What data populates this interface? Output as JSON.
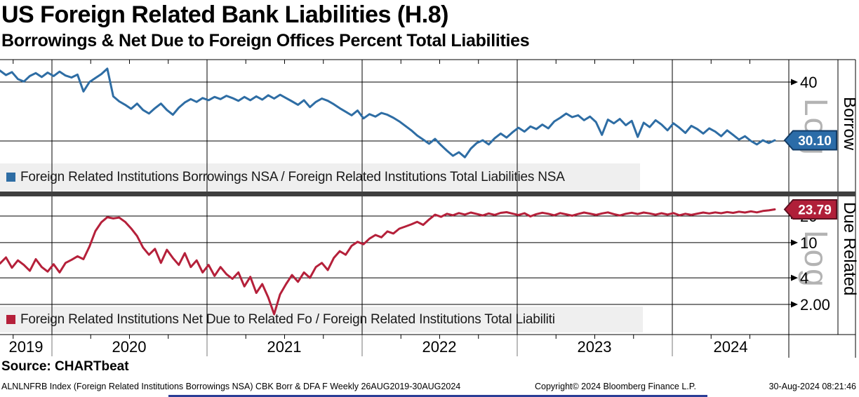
{
  "header": {
    "title": "US Foreign Related Bank Liabilities (H.8)",
    "subtitle": "Borrowings & Net Due to Foreign Offices Percent Total Liabilities"
  },
  "top_panel": {
    "legend": "Foreign Related Institutions Borrowings NSA / Foreign Related Institutions Total Liabilities NSA",
    "axis_title": "Borrow",
    "scale_label": "Log",
    "last_price": "30.10"
  },
  "bottom_panel": {
    "legend": "Foreign Related Institutions Net Due to Related Fo / Foreign Related Institutions Total Liabiliti",
    "axis_title": "Due Related",
    "scale_label": "Log",
    "last_price": "23.79"
  },
  "x_axis": {
    "years": [
      "2019",
      "2020",
      "2021",
      "2022",
      "2023",
      "2024"
    ]
  },
  "footer": {
    "source": "Source: CHARTbeat",
    "description": "ALNLNFRB Index (Foreign Related Institutions Borrowings NSA) CBK Borr & DFA F  Weekly 26AUG2019-30AUG2024",
    "copyright": "Copyright© 2024 Bloomberg Finance L.P.",
    "timestamp": "30-Aug-2024 08:21:46"
  },
  "colors": {
    "borrow_line": "#2E6DA4",
    "due_line": "#B5203A",
    "tag_blue_fill": "#2B6CA8",
    "tag_blue_border": "#123A63",
    "tag_red_fill": "#B01F39",
    "tag_red_border": "#5C1020",
    "legend_bg": "#EFEFEF",
    "watermark": "#B3B3B3",
    "divider": "#3F3F3F",
    "bottom_bar": "#2B3E96"
  },
  "chart_data": [
    {
      "type": "line",
      "name": "Foreign Related Institutions Borrowings NSA / Total Liabilities NSA",
      "scale": "log",
      "frequency": "Weekly",
      "x_range_label": "26AUG2019-30AUG2024",
      "x_start_year": 2019.65,
      "x_end_year": 2024.66,
      "y_ticks": [
        {
          "value": 40,
          "label": "40"
        }
      ],
      "gridline_values": [
        40,
        30
      ],
      "last_value": 30.1,
      "last_label": "30.10",
      "values": [
        42.3,
        41.4,
        42.0,
        40.6,
        40.1,
        41.2,
        41.8,
        41.0,
        41.9,
        41.2,
        42.1,
        41.3,
        40.9,
        41.5,
        38.2,
        40.0,
        40.8,
        41.6,
        42.7,
        37.3,
        36.4,
        35.8,
        35.1,
        36.0,
        34.9,
        34.3,
        35.2,
        36.0,
        34.9,
        34.1,
        35.3,
        36.2,
        36.8,
        36.3,
        37.0,
        36.6,
        37.2,
        36.8,
        37.4,
        37.0,
        36.5,
        37.2,
        36.6,
        37.3,
        36.7,
        37.5,
        36.9,
        37.6,
        37.0,
        36.4,
        35.8,
        36.6,
        35.4,
        36.3,
        36.9,
        36.5,
        35.9,
        35.2,
        34.6,
        34.0,
        34.8,
        33.5,
        34.2,
        33.8,
        34.4,
        34.1,
        33.6,
        33.0,
        32.3,
        31.6,
        30.8,
        30.2,
        29.6,
        30.3,
        29.4,
        28.6,
        27.9,
        28.4,
        27.7,
        28.9,
        29.7,
        30.1,
        29.5,
        30.4,
        31.1,
        30.5,
        31.3,
        32.0,
        31.4,
        32.2,
        31.8,
        32.5,
        31.9,
        33.0,
        33.6,
        34.3,
        33.7,
        34.0,
        33.2,
        33.8,
        32.9,
        30.9,
        33.3,
        32.7,
        33.4,
        32.4,
        33.1,
        30.6,
        32.8,
        32.1,
        33.2,
        32.5,
        31.6,
        32.7,
        32.0,
        31.2,
        32.3,
        31.8,
        31.1,
        31.9,
        31.4,
        30.7,
        31.6,
        30.9,
        30.2,
        30.7,
        30.0,
        29.5,
        30.1,
        29.7,
        30.1
      ]
    },
    {
      "type": "line",
      "name": "Foreign Related Institutions Net Due to Related Foreign Offices / Total Liabilities",
      "scale": "log",
      "frequency": "Weekly",
      "x_range_label": "26AUG2019-30AUG2024",
      "x_start_year": 2019.65,
      "x_end_year": 2024.66,
      "y_ticks": [
        {
          "value": 20,
          "label": "20"
        },
        {
          "value": 10,
          "label": "10"
        },
        {
          "value": 4,
          "label": "4"
        },
        {
          "value": 2,
          "label": "2.00"
        }
      ],
      "gridline_values": [
        20,
        10,
        4,
        2
      ],
      "last_value": 23.79,
      "last_label": "23.79",
      "values": [
        5.8,
        6.8,
        5.2,
        6.3,
        5.6,
        4.8,
        6.5,
        5.3,
        4.7,
        5.7,
        4.6,
        5.9,
        6.4,
        7.0,
        6.5,
        9.0,
        13.5,
        17.0,
        19.4,
        18.8,
        19.2,
        17.2,
        14.5,
        11.9,
        8.8,
        7.3,
        8.5,
        5.9,
        8.3,
        6.7,
        5.6,
        7.6,
        5.3,
        6.3,
        4.6,
        5.6,
        4.2,
        5.3,
        4.4,
        3.9,
        4.6,
        3.2,
        4.1,
        2.7,
        3.4,
        2.4,
        1.55,
        2.6,
        3.4,
        4.3,
        3.6,
        4.6,
        4.0,
        5.3,
        5.9,
        4.9,
        6.7,
        8.0,
        7.3,
        9.2,
        10.2,
        9.6,
        11.1,
        12.2,
        11.5,
        13.4,
        12.7,
        14.4,
        15.2,
        16.1,
        17.2,
        15.9,
        18.3,
        20.7,
        19.6,
        21.2,
        20.4,
        21.6,
        20.8,
        21.9,
        21.1,
        20.3,
        21.4,
        20.6,
        21.7,
        22.1,
        21.3,
        20.5,
        21.5,
        19.8,
        21.0,
        21.8,
        21.2,
        20.4,
        21.6,
        20.9,
        20.2,
        21.1,
        21.9,
        21.3,
        20.6,
        21.4,
        22.0,
        21.0,
        20.3,
        21.2,
        21.8,
        21.1,
        21.9,
        21.4,
        20.7,
        21.5,
        20.8,
        21.6,
        20.4,
        21.2,
        20.6,
        21.3,
        21.9,
        21.4,
        22.0,
        21.5,
        22.2,
        21.7,
        22.4,
        21.9,
        22.6,
        22.0,
        22.8,
        23.2,
        23.79
      ]
    }
  ]
}
